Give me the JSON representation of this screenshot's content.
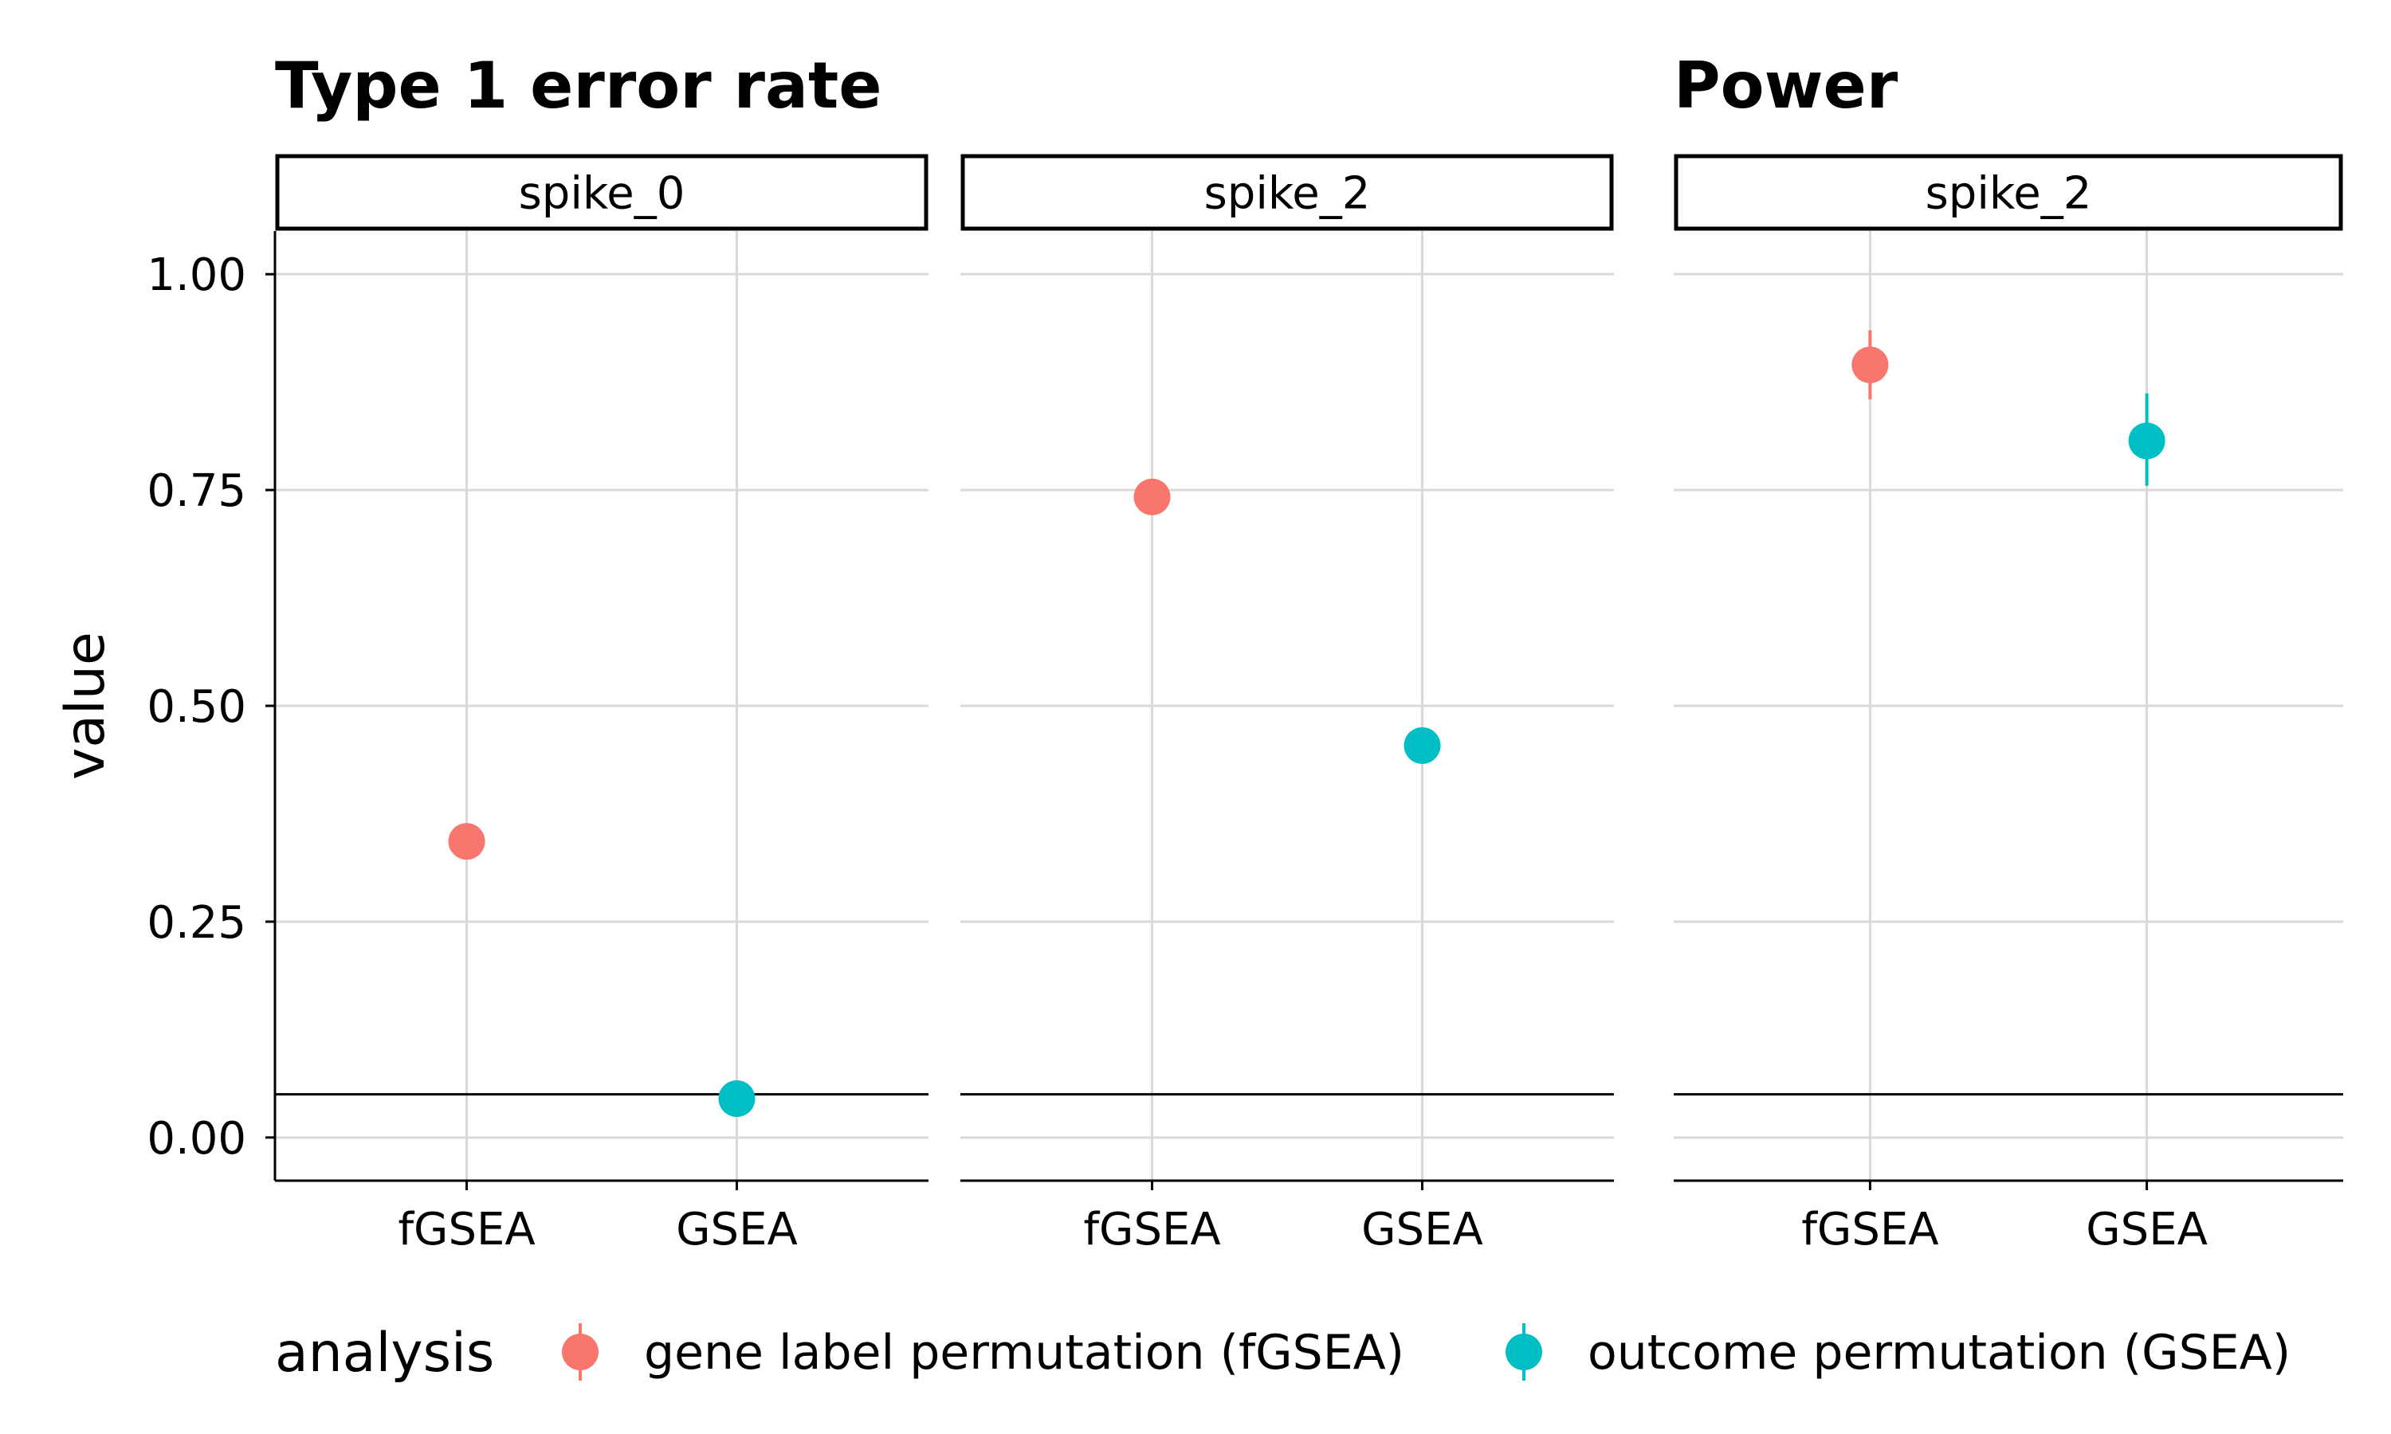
{
  "chart_data": {
    "type": "scatter",
    "ylabel": "value",
    "ylim": [
      -0.05,
      1.05
    ],
    "yticks": [
      {
        "value": 0.0,
        "label": "0.00"
      },
      {
        "value": 0.25,
        "label": "0.25"
      },
      {
        "value": 0.5,
        "label": "0.50"
      },
      {
        "value": 0.75,
        "label": "0.75"
      },
      {
        "value": 1.0,
        "label": "1.00"
      }
    ],
    "categories": [
      "fGSEA",
      "GSEA"
    ],
    "reference_line": 0.05,
    "group_titles": [
      {
        "text": "Type 1 error rate",
        "panel": 0
      },
      {
        "text": "Power",
        "panel": 2
      }
    ],
    "legend": {
      "title": "analysis",
      "position": "bottom",
      "entries": [
        {
          "label": "gene label permutation (fGSEA)",
          "color": "#F8766D"
        },
        {
          "label": "outcome permutation (GSEA)",
          "color": "#00BFC4"
        }
      ]
    },
    "panels": [
      {
        "strip": "spike_0",
        "points": [
          {
            "x": "fGSEA",
            "y": 0.343,
            "lo": 0.343,
            "hi": 0.343,
            "color": "#F8766D"
          },
          {
            "x": "GSEA",
            "y": 0.045,
            "lo": 0.045,
            "hi": 0.045,
            "color": "#00BFC4"
          }
        ]
      },
      {
        "strip": "spike_2",
        "points": [
          {
            "x": "fGSEA",
            "y": 0.742,
            "lo": 0.742,
            "hi": 0.742,
            "color": "#F8766D"
          },
          {
            "x": "GSEA",
            "y": 0.454,
            "lo": 0.454,
            "hi": 0.454,
            "color": "#00BFC4"
          }
        ]
      },
      {
        "strip": "spike_2",
        "points": [
          {
            "x": "fGSEA",
            "y": 0.895,
            "lo": 0.855,
            "hi": 0.935,
            "color": "#F8766D"
          },
          {
            "x": "GSEA",
            "y": 0.807,
            "lo": 0.755,
            "hi": 0.862,
            "color": "#00BFC4"
          }
        ]
      }
    ]
  }
}
